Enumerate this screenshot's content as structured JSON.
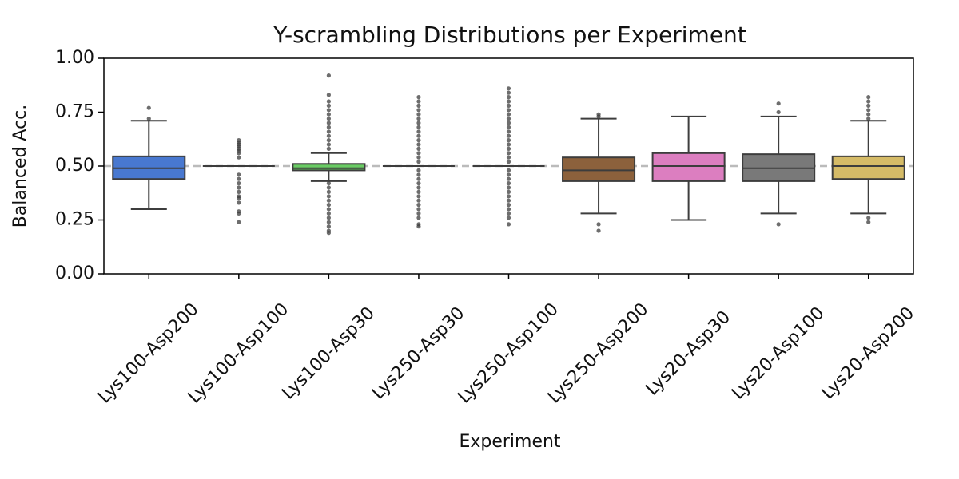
{
  "chart_data": {
    "type": "box",
    "title": "Y-scrambling Distributions per Experiment",
    "x_label": "Experiment",
    "y_label": "Balanced Acc.",
    "categories": [
      "Lys100-Asp200",
      "Lys100-Asp100",
      "Lys100-Asp30",
      "Lys250-Asp30",
      "Lys250-Asp100",
      "Lys250-Asp200",
      "Lys20-Asp30",
      "Lys20-Asp100",
      "Lys20-Asp200"
    ],
    "colors": [
      "#4878d0",
      "#ee854a",
      "#6acc64",
      "#d65f5f",
      "#956cb4",
      "#8c613c",
      "#dc7ec0",
      "#797979",
      "#d5bb67"
    ],
    "boxes": [
      {
        "whislo": 0.3,
        "q1": 0.44,
        "med": 0.49,
        "q3": 0.545,
        "whishi": 0.71,
        "fliers": [
          0.72,
          0.77
        ]
      },
      {
        "whislo": 0.5,
        "q1": 0.5,
        "med": 0.5,
        "q3": 0.5,
        "whishi": 0.5,
        "fliers": [
          0.24,
          0.28,
          0.29,
          0.33,
          0.35,
          0.36,
          0.38,
          0.4,
          0.42,
          0.44,
          0.46,
          0.54,
          0.56,
          0.57,
          0.58,
          0.59,
          0.6,
          0.61,
          0.62
        ]
      },
      {
        "whislo": 0.43,
        "q1": 0.48,
        "med": 0.49,
        "q3": 0.51,
        "whishi": 0.56,
        "fliers": [
          0.19,
          0.2,
          0.22,
          0.24,
          0.26,
          0.28,
          0.3,
          0.32,
          0.34,
          0.36,
          0.38,
          0.4,
          0.42,
          0.58,
          0.6,
          0.62,
          0.64,
          0.66,
          0.68,
          0.7,
          0.72,
          0.74,
          0.76,
          0.78,
          0.8,
          0.83,
          0.92
        ]
      },
      {
        "whislo": 0.5,
        "q1": 0.5,
        "med": 0.5,
        "q3": 0.5,
        "whishi": 0.5,
        "fliers": [
          0.22,
          0.23,
          0.26,
          0.28,
          0.3,
          0.32,
          0.34,
          0.36,
          0.38,
          0.4,
          0.42,
          0.44,
          0.46,
          0.48,
          0.52,
          0.54,
          0.56,
          0.58,
          0.6,
          0.62,
          0.64,
          0.66,
          0.68,
          0.7,
          0.72,
          0.74,
          0.76,
          0.78,
          0.8,
          0.82
        ]
      },
      {
        "whislo": 0.5,
        "q1": 0.5,
        "med": 0.5,
        "q3": 0.5,
        "whishi": 0.5,
        "fliers": [
          0.23,
          0.26,
          0.28,
          0.3,
          0.32,
          0.34,
          0.36,
          0.38,
          0.4,
          0.42,
          0.44,
          0.46,
          0.48,
          0.52,
          0.54,
          0.56,
          0.58,
          0.6,
          0.62,
          0.64,
          0.66,
          0.68,
          0.7,
          0.72,
          0.74,
          0.76,
          0.78,
          0.8,
          0.82,
          0.84,
          0.86
        ]
      },
      {
        "whislo": 0.28,
        "q1": 0.43,
        "med": 0.48,
        "q3": 0.54,
        "whishi": 0.72,
        "fliers": [
          0.2,
          0.23,
          0.73,
          0.74
        ]
      },
      {
        "whislo": 0.25,
        "q1": 0.43,
        "med": 0.5,
        "q3": 0.56,
        "whishi": 0.73,
        "fliers": []
      },
      {
        "whislo": 0.28,
        "q1": 0.43,
        "med": 0.49,
        "q3": 0.555,
        "whishi": 0.73,
        "fliers": [
          0.23,
          0.75,
          0.79
        ]
      },
      {
        "whislo": 0.28,
        "q1": 0.44,
        "med": 0.5,
        "q3": 0.545,
        "whishi": 0.71,
        "fliers": [
          0.24,
          0.26,
          0.72,
          0.74,
          0.76,
          0.78,
          0.8,
          0.82
        ]
      }
    ],
    "reference_line": {
      "value": 0.5,
      "color": "#bbbbbb"
    },
    "ylim": [
      0,
      1
    ],
    "yticks": [
      {
        "value": 0,
        "label": "0.00"
      },
      {
        "value": 0.25,
        "label": "0.25"
      },
      {
        "value": 0.5,
        "label": "0.50"
      },
      {
        "value": 0.75,
        "label": "0.75"
      },
      {
        "value": 1,
        "label": "1.00"
      }
    ]
  }
}
